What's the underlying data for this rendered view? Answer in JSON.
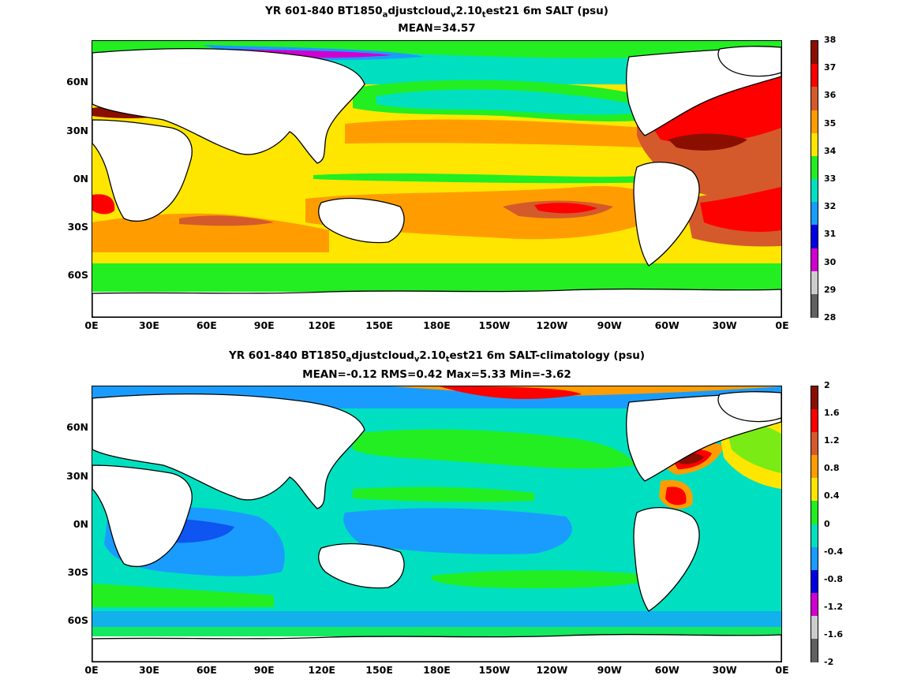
{
  "panels": [
    {
      "id": "top",
      "title_parts": {
        "a": "YR 601-840 BT1850",
        "s1": "a",
        "b": "djustcloud",
        "s2": "v",
        "c": "2.10",
        "s3": "t",
        "d": "est21 6m SALT (psu)"
      },
      "stats": "MEAN=34.57",
      "colorbar": {
        "labels": [
          "38",
          "37",
          "36",
          "35",
          "34",
          "33",
          "32",
          "31",
          "30",
          "29",
          "28"
        ],
        "colors": [
          "#8b0f00",
          "#ff0000",
          "#d55a2b",
          "#ff9d00",
          "#ffe600",
          "#22ee22",
          "#00e0c0",
          "#1a9cff",
          "#0000e0",
          "#d000d0",
          "#cccccc",
          "#606060"
        ]
      }
    },
    {
      "id": "bottom",
      "title_parts": {
        "a": "YR 601-840 BT1850",
        "s1": "a",
        "b": "djustcloud",
        "s2": "v",
        "c": "2.10",
        "s3": "t",
        "d": "est21 6m SALT-climatology (psu)"
      },
      "stats": "MEAN=-0.12   RMS=0.42   Max=5.33   Min=-3.62",
      "colorbar": {
        "labels": [
          "2",
          "1.6",
          "1.2",
          "0.8",
          "0.4",
          "0",
          "-0.4",
          "-0.8",
          "-1.2",
          "-1.6",
          "-2"
        ],
        "colors": [
          "#8b0f00",
          "#ff0000",
          "#d55a2b",
          "#ff9d00",
          "#ffe600",
          "#22ee22",
          "#00e0c0",
          "#1a9cff",
          "#0000e0",
          "#d000d0",
          "#cccccc",
          "#606060"
        ]
      }
    }
  ],
  "axes": {
    "lat_labels": [
      "60N",
      "30N",
      "0N",
      "30S",
      "60S"
    ],
    "lon_labels": [
      "0E",
      "30E",
      "60E",
      "90E",
      "120E",
      "150E",
      "180E",
      "150W",
      "120W",
      "90W",
      "60W",
      "30W",
      "0E"
    ]
  },
  "colors": {
    "land": "#ffffff",
    "coast": "#000000"
  }
}
